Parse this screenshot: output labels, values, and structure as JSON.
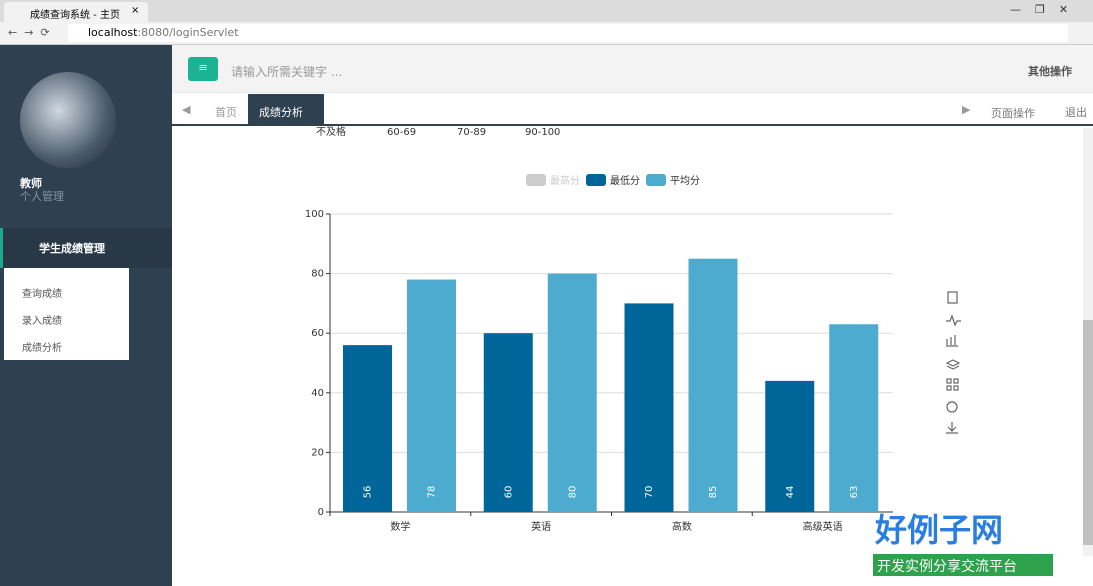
{
  "browser": {
    "tab_title": "成绩查询系统 - 主页",
    "url_host": "localhost",
    "url_rest": ":8080/loginServlet"
  },
  "sidebar": {
    "user": "教师",
    "user_menu": "个人管理",
    "section": "学生成绩管理",
    "items": [
      "查询成绩",
      "录入成绩",
      "成绩分析"
    ]
  },
  "header": {
    "search_placeholder": "请输入所需关键字 ...",
    "other_actions": "其他操作"
  },
  "tabs": {
    "items": [
      "首页",
      "成绩分析"
    ],
    "page_actions": "页面操作",
    "logout": "退出"
  },
  "grade_ranges": [
    "不及格",
    "60-69",
    "70-89",
    "90-100"
  ],
  "chart_data": {
    "type": "bar",
    "categories": [
      "数学",
      "英语",
      "高数",
      "高级英语"
    ],
    "series": [
      {
        "name": "最高分",
        "color": "#cccccc",
        "visible": false,
        "values": [
          null,
          null,
          null,
          null
        ]
      },
      {
        "name": "最低分",
        "color": "#006699",
        "visible": true,
        "values": [
          56,
          60,
          70,
          44
        ]
      },
      {
        "name": "平均分",
        "color": "#4cabce",
        "visible": true,
        "values": [
          78,
          80,
          85,
          63
        ]
      }
    ],
    "ylim": [
      0,
      100
    ],
    "yticks": [
      0,
      20,
      40,
      60,
      80,
      100
    ],
    "grid": true,
    "legend": "top"
  },
  "watermark": {
    "title": "好例子网",
    "subtitle": "开发实例分享交流平台"
  }
}
